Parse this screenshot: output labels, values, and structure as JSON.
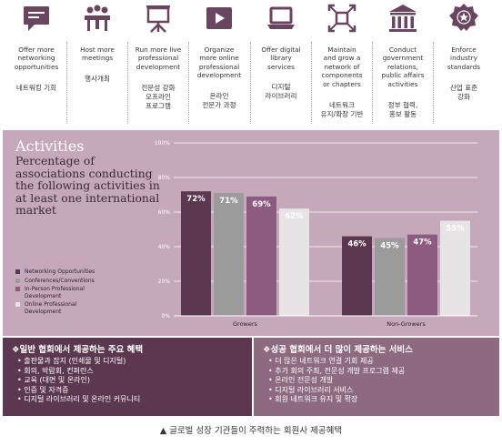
{
  "top_items": [
    {
      "icon": "chat-bubble-icon",
      "en": "Offer more\nnetworking\nopportunities",
      "ko": "네트워킹 기회"
    },
    {
      "icon": "meeting-table-icon",
      "en": "Host more\nmeetings",
      "ko": "행사개최"
    },
    {
      "icon": "presentation-board-icon",
      "en": "Run more live\nprofessional\ndevelopment",
      "ko": "전문성 강화\n오프라인\n프로그램"
    },
    {
      "icon": "video-play-icon",
      "en": "Organize\nmore online\nprofessional\ndevelopment",
      "ko": "온라인\n전문가 과정"
    },
    {
      "icon": "laptop-icon",
      "en": "Offer digital\nlibrary\nservices",
      "ko": "디지털\n라이브러리"
    },
    {
      "icon": "network-expand-icon",
      "en": "Maintain\nand grow a\nnetwork of\ncomponents\nor chapters",
      "ko": "네트워크\n유지/확장 기반"
    },
    {
      "icon": "government-building-icon",
      "en": "Conduct\ngovernment\nrelations,\npublic affairs\nactivities",
      "ko": "정부 협력,\n홍보 활동"
    },
    {
      "icon": "badge-icon",
      "en": "Enforce\nindustry\nstandards",
      "ko": "산업 표준\n강화"
    }
  ],
  "colors": {
    "panel": "#c5a8b9",
    "networking": "#5c3850",
    "conferences": "#9b9b9b",
    "inperson": "#8d5a80",
    "online": "#e8e4e6",
    "icon": "#6a4560"
  },
  "chart_data": {
    "type": "bar",
    "title": "Activities",
    "subtitle": "Percentage of associations conducting the following activities in at least one international market",
    "categories": [
      "Growers",
      "Non-Growers"
    ],
    "series": [
      {
        "name": "Networking Opportunities",
        "values": [
          72,
          46
        ],
        "color": "#5c3850"
      },
      {
        "name": "Conferences/Conventions",
        "values": [
          71,
          45
        ],
        "color": "#9b9b9b"
      },
      {
        "name": "In-Person Professional Development",
        "values": [
          69,
          47
        ],
        "color": "#8d5a80"
      },
      {
        "name": "Online Professional Development",
        "values": [
          62,
          55
        ],
        "color": "#e8e4e6"
      }
    ],
    "y_ticks": [
      "0%",
      "20%",
      "40%",
      "60%",
      "80%",
      "100%"
    ],
    "ylim": [
      0,
      100
    ],
    "grid": true,
    "legend_position": "bottom-left"
  },
  "box_left": {
    "heading": "❖일반 협회에서 제공하는 주요 혜택",
    "items": [
      "출판물과 잡지 (인쇄물 및 디지털)",
      "회의, 박람회, 컨퍼런스",
      "교육 (대면 및 온라인)",
      "인증 및 자격증",
      "디지털 라이브러리 및 온라인 커뮤니티"
    ]
  },
  "box_right": {
    "heading": "❖성공 협회에서 더 많이 제공하는 서비스",
    "items": [
      "더 많은 네트워크 연결 기회 제공",
      "추가 회의 주최, 전문성 개발 프로그램 제공",
      "온라인 전문성 개발",
      "디지털 라이브러리 서비스",
      "회원 네트워크 유지 및 확장"
    ]
  },
  "caption": "▲ 글로벌 성장 기관들이 주력하는 회원사 제공혜택"
}
